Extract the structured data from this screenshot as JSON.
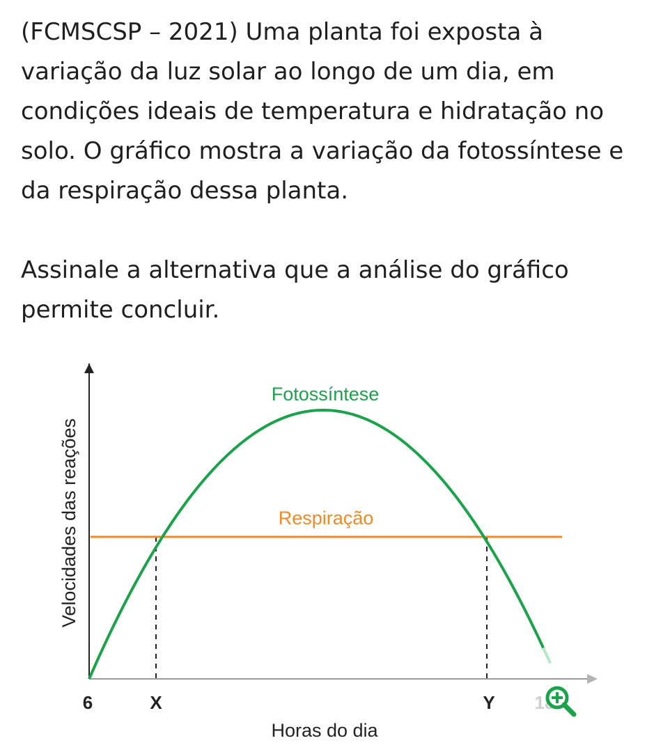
{
  "question": {
    "paragraph1": "(FCMSCSP – 2021) Uma planta foi exposta à variação da luz solar ao longo de um dia, em condições ideais de temperatura e hidratação no solo. O gráfico mostra a variação da fotossíntese e da respiração dessa planta.",
    "paragraph2": "Assinale a alternativa que a análise do gráfico permite concluir."
  },
  "chart_data": {
    "type": "line",
    "xlabel": "Horas do dia",
    "ylabel": "Velocidades das reações",
    "x_ticks": [
      "6",
      "X",
      "Y",
      "18"
    ],
    "series": [
      {
        "name": "Fotossíntese",
        "shape": "parabola",
        "starts_at": "6",
        "peak": "midday",
        "crosses_respiration_at": [
          "X",
          "Y"
        ],
        "color": "#1aa34a"
      },
      {
        "name": "Respiração",
        "shape": "constant",
        "color": "#f08a24"
      }
    ],
    "x_axis_color": "#9a9a9a",
    "y_axis_color": "#222222"
  },
  "icons": {
    "zoom": "zoom-in-icon",
    "zoom_color": "#1aa34a"
  }
}
